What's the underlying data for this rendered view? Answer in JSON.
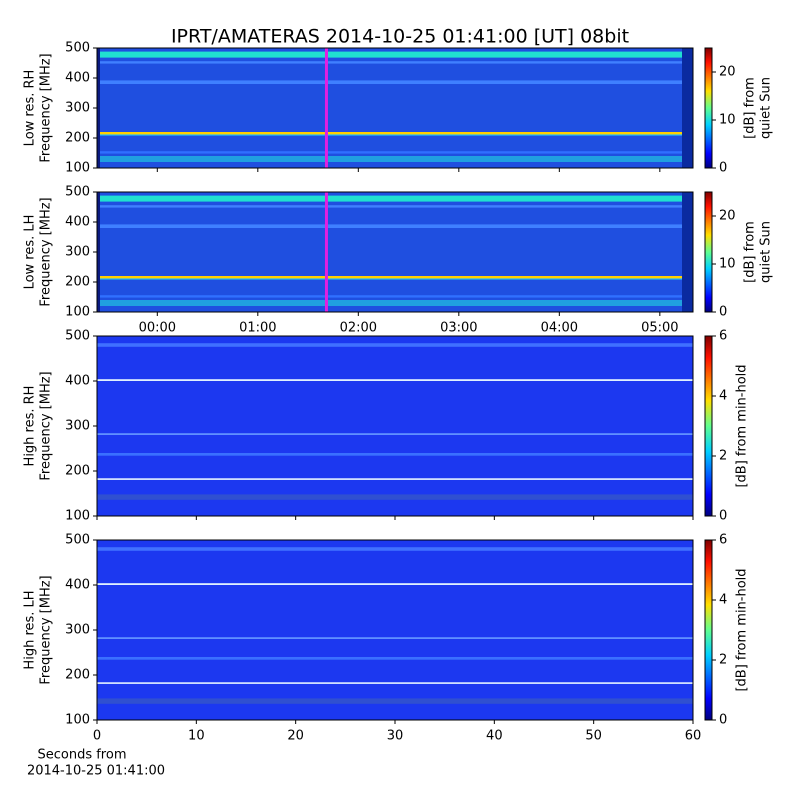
{
  "chart_data": {
    "type": "spectrogram",
    "title": "IPRT/AMATERAS 2014-10-25 01:41:00 [UT]   08bit",
    "low_res_x": {
      "xlim": [
        -0.6,
        5.33
      ],
      "xticks": [
        {
          "value": 0,
          "label": "00:00"
        },
        {
          "value": 1,
          "label": "01:00"
        },
        {
          "value": 2,
          "label": "02:00"
        },
        {
          "value": 3,
          "label": "03:00"
        },
        {
          "value": 4,
          "label": "04:00"
        },
        {
          "value": 5,
          "label": "05:00"
        }
      ],
      "marker": 1.683,
      "marker_color": "#e020e0"
    },
    "high_res_x": {
      "xlim": [
        0,
        60
      ],
      "xticks": [
        0,
        10,
        20,
        30,
        40,
        50,
        60
      ],
      "xlabel": [
        "Seconds from",
        "2014-10-25 01:41:00"
      ]
    },
    "panels": [
      {
        "ylabel": [
          "Low res. RH",
          "Frequency [MHz]"
        ],
        "ylim": [
          100,
          500
        ],
        "yticks": [
          100,
          200,
          300,
          400,
          500
        ],
        "colorbar": {
          "label": [
            "[dB] from",
            "quiet Sun"
          ],
          "lim": [
            0,
            25
          ],
          "ticks": [
            0,
            10,
            20
          ]
        }
      },
      {
        "ylabel": [
          "Low res. LH",
          "Frequency [MHz]"
        ],
        "ylim": [
          100,
          500
        ],
        "yticks": [
          100,
          200,
          300,
          400,
          500
        ],
        "colorbar": {
          "label": [
            "[dB] from",
            "quiet Sun"
          ],
          "lim": [
            0,
            25
          ],
          "ticks": [
            0,
            10,
            20
          ]
        }
      },
      {
        "ylabel": [
          "High res. RH",
          "Frequency [MHz]"
        ],
        "ylim": [
          100,
          500
        ],
        "yticks": [
          100,
          200,
          300,
          400,
          500
        ],
        "colorbar": {
          "label": [
            "[dB] from min-hold"
          ],
          "lim": [
            0,
            6
          ],
          "ticks": [
            0,
            2,
            4,
            6
          ]
        }
      },
      {
        "ylabel": [
          "High res. LH",
          "Frequency [MHz]"
        ],
        "ylim": [
          100,
          500
        ],
        "yticks": [
          100,
          200,
          300,
          400,
          500
        ],
        "colorbar": {
          "label": [
            "[dB] from min-hold"
          ],
          "lim": [
            0,
            6
          ],
          "ticks": [
            0,
            2,
            4,
            6
          ]
        }
      }
    ]
  }
}
